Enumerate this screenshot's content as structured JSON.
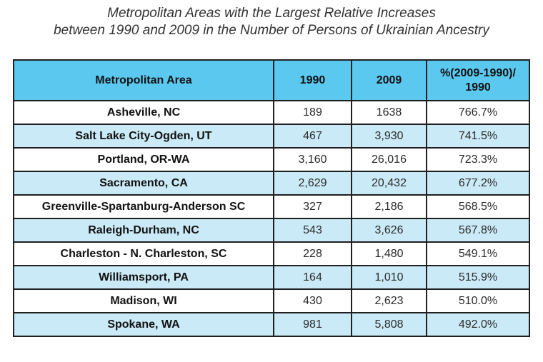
{
  "title": {
    "line1": "Metropolitan Areas with the Largest Relative Increases",
    "line2": "between 1990 and 2009 in the Number of Persons of Ukrainian Ancestry"
  },
  "colors": {
    "header_bg": "#5bc8ef",
    "row_alt_bg": "#cbeaf7",
    "row_bg": "#ffffff",
    "border": "#1f1f1f"
  },
  "table": {
    "columns": [
      "Metropolitan Area",
      "1990",
      "2009",
      "%(2009-1990)/ 1990"
    ],
    "rows": [
      [
        "Asheville, NC",
        "189",
        "1638",
        "766.7%"
      ],
      [
        "Salt Lake City-Ogden, UT",
        "467",
        "3,930",
        "741.5%"
      ],
      [
        "Portland, OR-WA",
        "3,160",
        "26,016",
        "723.3%"
      ],
      [
        "Sacramento, CA",
        "2,629",
        "20,432",
        "677.2%"
      ],
      [
        "Greenville-Spartanburg-Anderson SC",
        "327",
        "2,186",
        "568.5%"
      ],
      [
        "Raleigh-Durham, NC",
        "543",
        "3,626",
        "567.8%"
      ],
      [
        "Charleston - N. Charleston, SC",
        "228",
        "1,480",
        "549.1%"
      ],
      [
        "Williamsport, PA",
        "164",
        "1,010",
        "515.9%"
      ],
      [
        "Madison, WI",
        "430",
        "2,623",
        "510.0%"
      ],
      [
        "Spokane, WA",
        "981",
        "5,808",
        "492.0%"
      ]
    ]
  }
}
